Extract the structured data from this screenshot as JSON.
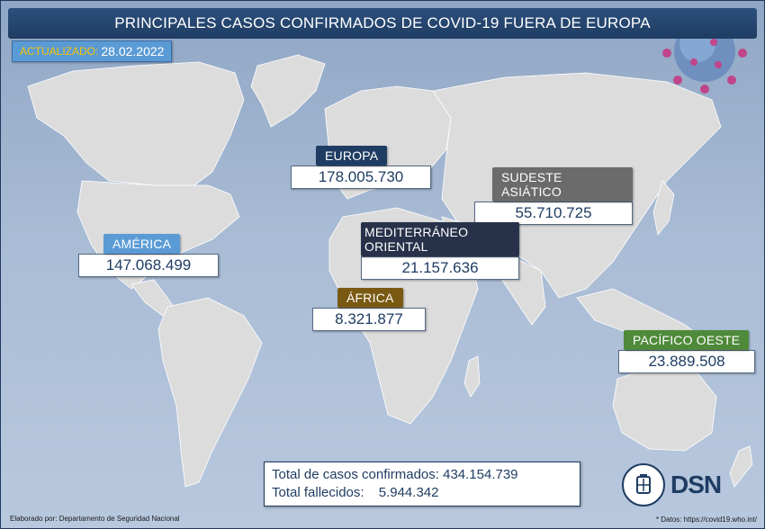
{
  "title": "PRINCIPALES CASOS CONFIRMADOS DE COVID-19 FUERA DE EUROPA",
  "updated": {
    "label": "ACTUALIZADO:",
    "date": "28.02.2022"
  },
  "regions": [
    {
      "name": "EUROPA",
      "value": "178.005.730",
      "color": "#1f3d63"
    },
    {
      "name": "SUDESTE ASIÁTICO",
      "value": "55.710.725",
      "color": "#6b6b6b"
    },
    {
      "name": "AMÉRICA",
      "value": "147.068.499",
      "color": "#5b9bd5"
    },
    {
      "name": "MEDITERRÁNEO ORIENTAL",
      "value": "21.157.636",
      "color": "#27324a"
    },
    {
      "name": "ÁFRICA",
      "value": "8.321.877",
      "color": "#7a5a12"
    },
    {
      "name": "PACÍFICO OESTE",
      "value": "23.889.508",
      "color": "#4e8a3a"
    }
  ],
  "totals": {
    "confirmed_label": "Total de casos confirmados:",
    "confirmed_value": "434.154.739",
    "deaths_label": "Total fallecidos:",
    "deaths_value": "5.944.342"
  },
  "footer": {
    "left": "Elaborado por: Departamento de Seguridad Nacional",
    "right": "* Datos: https://covid19.who.int/"
  },
  "logo": {
    "text": "DSN"
  },
  "colors": {
    "land": "#dcdcdc",
    "ocean": "#a9bcd5",
    "accent": "#1f3d63"
  }
}
